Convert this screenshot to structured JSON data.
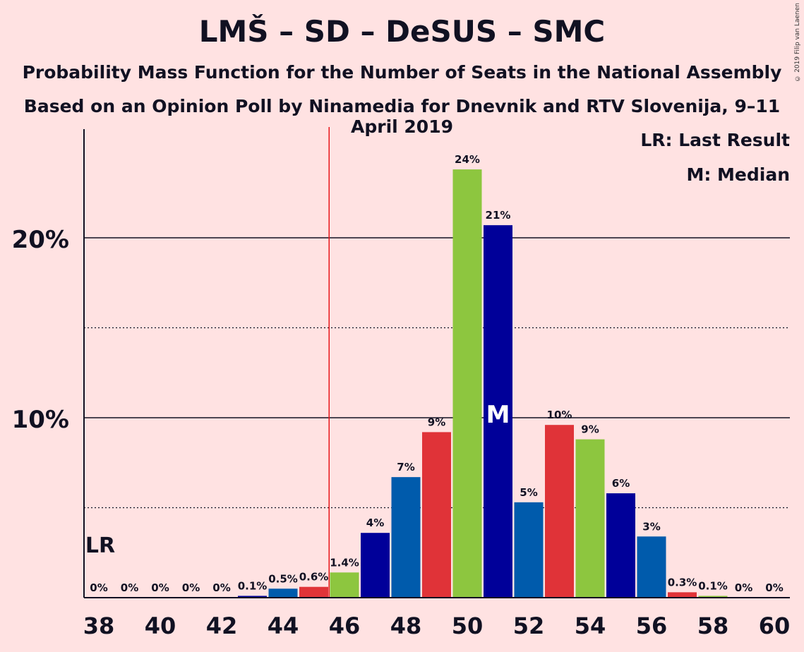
{
  "title": "LMŠ – SD – DeSUS – SMC",
  "subtitle": "Probability Mass Function for the Number of Seats in the National Assembly",
  "subtitle2": "Based on an Opinion Poll by Ninamedia for Dnevnik and RTV Slovenija, 9–11 April 2019",
  "credit": "© 2019 Filip van Laenen",
  "legend": {
    "lr": "LR: Last Result",
    "median": "M: Median"
  },
  "chart_data": {
    "type": "bar",
    "x": [
      38,
      39,
      40,
      41,
      42,
      43,
      44,
      45,
      46,
      47,
      48,
      49,
      50,
      51,
      52,
      53,
      54,
      55,
      56,
      57,
      58,
      59,
      60
    ],
    "values": [
      0,
      0,
      0,
      0,
      0,
      0.1,
      0.5,
      0.6,
      1.4,
      3.6,
      6.7,
      9.2,
      23.8,
      20.7,
      5.3,
      9.6,
      8.8,
      5.8,
      3.4,
      0.3,
      0.1,
      0,
      0
    ],
    "labels": [
      "0%",
      "0%",
      "0%",
      "0%",
      "0%",
      "0.1%",
      "0.5%",
      "0.6%",
      "1.4%",
      "4%",
      "7%",
      "9%",
      "24%",
      "21%",
      "5%",
      "10%",
      "9%",
      "6%",
      "3%",
      "0.3%",
      "0.1%",
      "0%",
      "0%"
    ],
    "bar_colors": [
      "#005BAC",
      "#000099",
      "#8DC63F",
      "#E03338",
      "#005BAC",
      "#000099",
      "#005BAC",
      "#E03338",
      "#8DC63F",
      "#000099",
      "#005BAC",
      "#E03338",
      "#8DC63F",
      "#000099",
      "#005BAC",
      "#E03338",
      "#8DC63F",
      "#000099",
      "#005BAC",
      "#E03338",
      "#8DC63F",
      "#000099",
      "#005BAC"
    ],
    "xticks": [
      38,
      40,
      42,
      44,
      46,
      48,
      50,
      52,
      54,
      56,
      58,
      60
    ],
    "yticks": [
      {
        "value": 10,
        "label": "10%"
      },
      {
        "value": 20,
        "label": "20%"
      }
    ],
    "ylim": [
      0,
      26
    ],
    "last_result": {
      "seat": 38,
      "label": "LR"
    },
    "majority_line": 45.5,
    "median": {
      "seat": 51,
      "label": "M"
    },
    "majority_color": "#E8161B"
  }
}
